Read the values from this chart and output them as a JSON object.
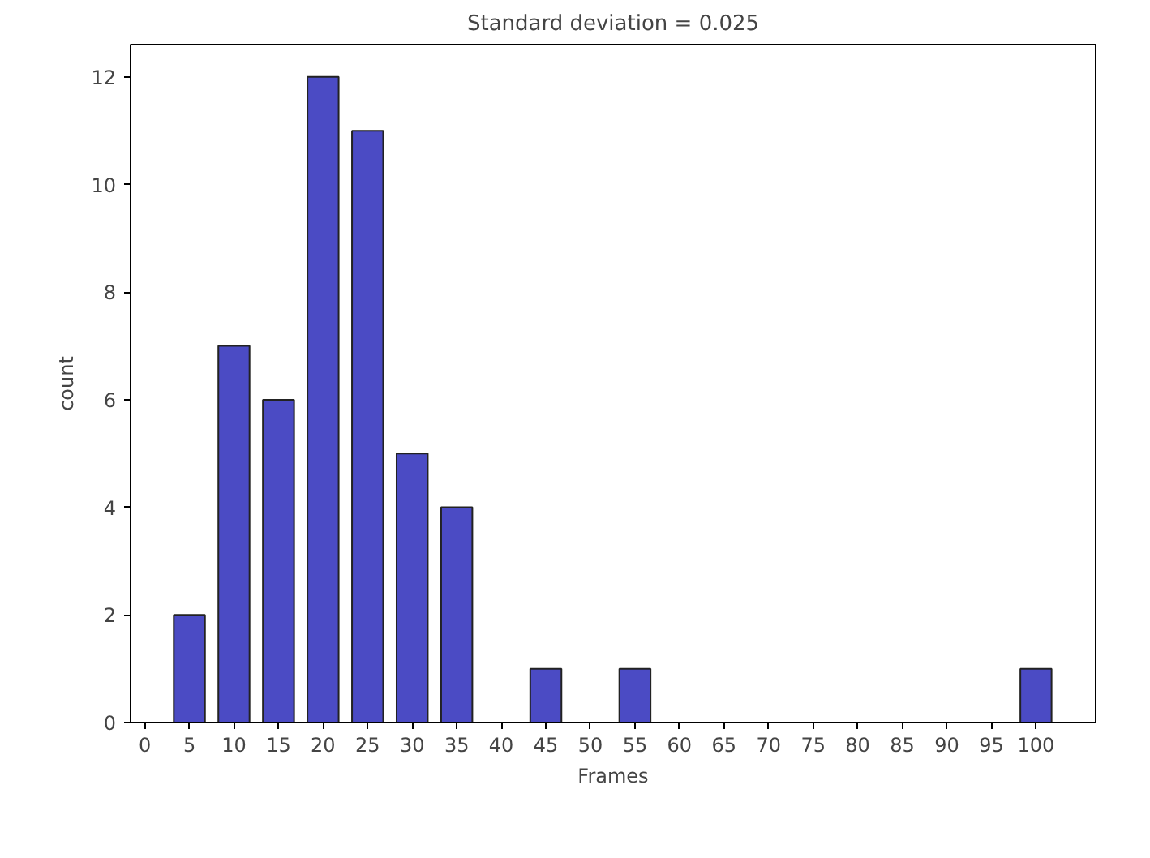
{
  "chart_data": {
    "type": "bar",
    "title": "Standard deviation = 0.025",
    "xlabel": "Frames",
    "ylabel": "count",
    "x": [
      5,
      10,
      15,
      20,
      25,
      30,
      35,
      45,
      55,
      100
    ],
    "values": [
      2,
      7,
      6,
      12,
      11,
      5,
      4,
      1,
      1,
      1
    ],
    "color": "#4b4bc4",
    "xlim": [
      -1.6,
      106.7
    ],
    "xticks": [
      0,
      5,
      10,
      15,
      20,
      25,
      30,
      35,
      40,
      45,
      50,
      55,
      60,
      65,
      70,
      75,
      80,
      85,
      90,
      95,
      100
    ],
    "ylim": [
      0,
      12.6
    ],
    "yticks": [
      0,
      2,
      4,
      6,
      8,
      10,
      12
    ],
    "grid": false
  }
}
